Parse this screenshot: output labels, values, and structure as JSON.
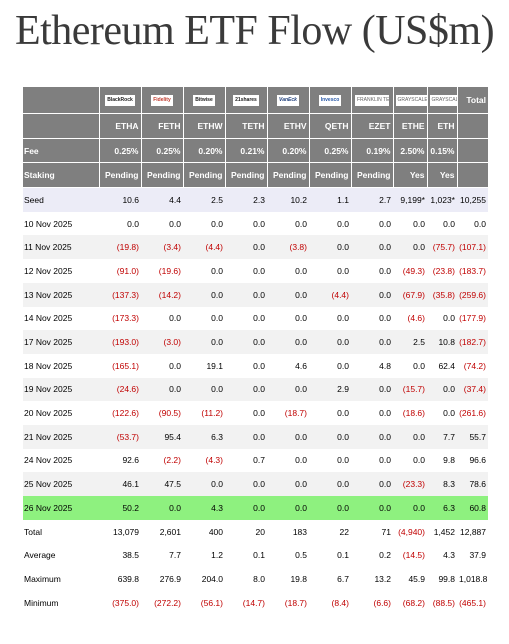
{
  "title": "Ethereum ETF Flow (US$m)",
  "colors": {
    "header": "#7f7f7f",
    "negative": "#c00000",
    "highlight": "#8ef17f"
  },
  "logos": [
    "BlackRock",
    "Fidelity",
    "Bitwise",
    "21shares",
    "VanEck",
    "Invesco",
    "FRANKLIN TEMPLETON",
    "GRAYSCALE",
    "GRAYSCALE"
  ],
  "total_header": "Total",
  "tickers": [
    "ETHA",
    "FETH",
    "ETHW",
    "TETH",
    "ETHV",
    "QETH",
    "EZET",
    "ETHE",
    "ETH"
  ],
  "fee": {
    "label": "Fee",
    "values": [
      "0.25%",
      "0.25%",
      "0.20%",
      "0.21%",
      "0.20%",
      "0.25%",
      "0.19%",
      "2.50%",
      "0.15%"
    ]
  },
  "staking": {
    "label": "Staking",
    "values": [
      "Pending",
      "Pending",
      "Pending",
      "Pending",
      "Pending",
      "Pending",
      "Pending",
      "Yes",
      "Yes"
    ]
  },
  "rows": [
    {
      "label": "Seed",
      "cells": [
        "10.6",
        "4.4",
        "2.5",
        "2.3",
        "10.2",
        "1.1",
        "2.7",
        "9,199*",
        "1,023*",
        "10,255"
      ]
    },
    {
      "label": "10 Nov 2025",
      "cells": [
        "0.0",
        "0.0",
        "0.0",
        "0.0",
        "0.0",
        "0.0",
        "0.0",
        "0.0",
        "0.0",
        "0.0"
      ]
    },
    {
      "label": "11 Nov 2025",
      "cells": [
        "(19.8)",
        "(3.4)",
        "(4.4)",
        "0.0",
        "(3.8)",
        "0.0",
        "0.0",
        "0.0",
        "(75.7)",
        "(107.1)"
      ]
    },
    {
      "label": "12 Nov 2025",
      "cells": [
        "(91.0)",
        "(19.6)",
        "0.0",
        "0.0",
        "0.0",
        "0.0",
        "0.0",
        "(49.3)",
        "(23.8)",
        "(183.7)"
      ]
    },
    {
      "label": "13 Nov 2025",
      "cells": [
        "(137.3)",
        "(14.2)",
        "0.0",
        "0.0",
        "0.0",
        "(4.4)",
        "0.0",
        "(67.9)",
        "(35.8)",
        "(259.6)"
      ]
    },
    {
      "label": "14 Nov 2025",
      "cells": [
        "(173.3)",
        "0.0",
        "0.0",
        "0.0",
        "0.0",
        "0.0",
        "0.0",
        "(4.6)",
        "0.0",
        "(177.9)"
      ]
    },
    {
      "label": "17 Nov 2025",
      "cells": [
        "(193.0)",
        "(3.0)",
        "0.0",
        "0.0",
        "0.0",
        "0.0",
        "0.0",
        "2.5",
        "10.8",
        "(182.7)"
      ]
    },
    {
      "label": "18 Nov 2025",
      "cells": [
        "(165.1)",
        "0.0",
        "19.1",
        "0.0",
        "4.6",
        "0.0",
        "4.8",
        "0.0",
        "62.4",
        "(74.2)"
      ]
    },
    {
      "label": "19 Nov 2025",
      "cells": [
        "(24.6)",
        "0.0",
        "0.0",
        "0.0",
        "0.0",
        "2.9",
        "0.0",
        "(15.7)",
        "0.0",
        "(37.4)"
      ]
    },
    {
      "label": "20 Nov 2025",
      "cells": [
        "(122.6)",
        "(90.5)",
        "(11.2)",
        "0.0",
        "(18.7)",
        "0.0",
        "0.0",
        "(18.6)",
        "0.0",
        "(261.6)"
      ]
    },
    {
      "label": "21 Nov 2025",
      "cells": [
        "(53.7)",
        "95.4",
        "6.3",
        "0.0",
        "0.0",
        "0.0",
        "0.0",
        "0.0",
        "7.7",
        "55.7"
      ]
    },
    {
      "label": "24 Nov 2025",
      "cells": [
        "92.6",
        "(2.2)",
        "(4.3)",
        "0.7",
        "0.0",
        "0.0",
        "0.0",
        "0.0",
        "9.8",
        "96.6"
      ]
    },
    {
      "label": "25 Nov 2025",
      "cells": [
        "46.1",
        "47.5",
        "0.0",
        "0.0",
        "0.0",
        "0.0",
        "0.0",
        "(23.3)",
        "8.3",
        "78.6"
      ]
    },
    {
      "label": "26 Nov 2025",
      "cells": [
        "50.2",
        "0.0",
        "4.3",
        "0.0",
        "0.0",
        "0.0",
        "0.0",
        "0.0",
        "6.3",
        "60.8"
      ]
    },
    {
      "label": "Total",
      "cells": [
        "13,079",
        "2,601",
        "400",
        "20",
        "183",
        "22",
        "71",
        "(4,940)",
        "1,452",
        "12,887"
      ]
    },
    {
      "label": "Average",
      "cells": [
        "38.5",
        "7.7",
        "1.2",
        "0.1",
        "0.5",
        "0.1",
        "0.2",
        "(14.5)",
        "4.3",
        "37.9"
      ]
    },
    {
      "label": "Maximum",
      "cells": [
        "639.8",
        "276.9",
        "204.0",
        "8.0",
        "19.8",
        "6.7",
        "13.2",
        "45.9",
        "99.8",
        "1,018.8"
      ]
    },
    {
      "label": "Minimum",
      "cells": [
        "(375.0)",
        "(272.2)",
        "(56.1)",
        "(14.7)",
        "(18.7)",
        "(8.4)",
        "(6.6)",
        "(68.2)",
        "(88.5)",
        "(465.1)"
      ]
    }
  ]
}
